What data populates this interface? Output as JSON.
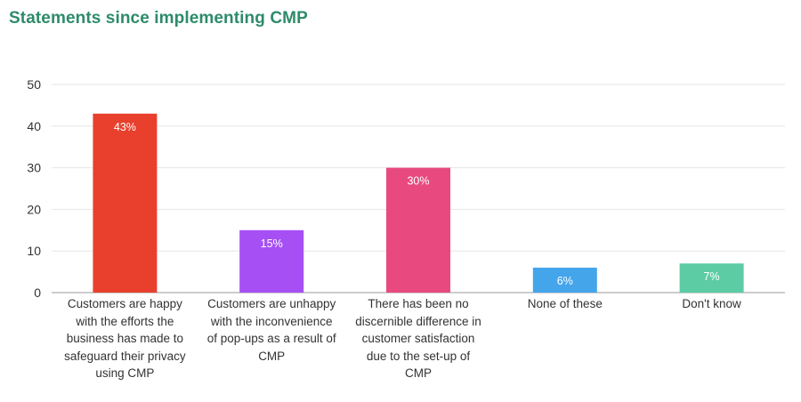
{
  "chart_data": {
    "type": "bar",
    "title": "Statements since implementing CMP",
    "categories": [
      "Customers are happy with the efforts the business has made to safeguard their privacy using CMP",
      "Customers are unhappy with the inconvenience of pop-ups as a result of CMP",
      "There has been no discernible difference in customer satisfaction due to the set-up of CMP",
      "None of these",
      "Don't know"
    ],
    "values": [
      43,
      15,
      30,
      6,
      7
    ],
    "data_labels": [
      "43%",
      "15%",
      "30%",
      "6%",
      "7%"
    ],
    "colors": [
      "#e8402d",
      "#a64ff5",
      "#e84a7f",
      "#45a5ea",
      "#5ccca5"
    ],
    "ylim": [
      0,
      50
    ],
    "yticks": [
      "0",
      "10",
      "20",
      "30",
      "40",
      "50"
    ],
    "xlabel": "",
    "ylabel": "",
    "grid": true,
    "legend": "none"
  }
}
